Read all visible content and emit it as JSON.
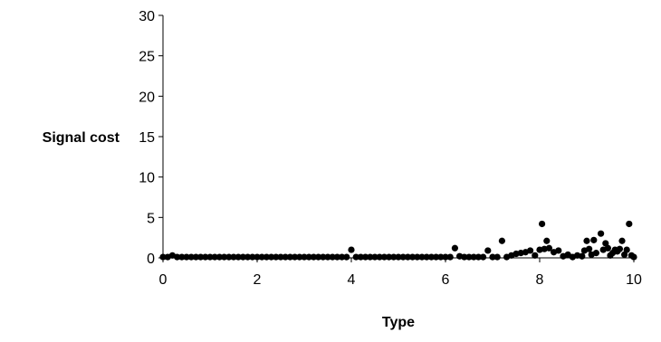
{
  "chart_data": {
    "type": "scatter",
    "title": "",
    "xlabel": "Type",
    "ylabel": "Signal cost",
    "xlim": [
      0,
      10
    ],
    "ylim": [
      0,
      30
    ],
    "x_ticks": [
      "0",
      "2",
      "4",
      "6",
      "8",
      "10"
    ],
    "y_ticks": [
      "0",
      "5",
      "10",
      "15",
      "20",
      "25",
      "30"
    ],
    "grid": false,
    "legend": "none",
    "marker_color": "#000000",
    "points": [
      [
        0.0,
        0.1
      ],
      [
        0.1,
        0.1
      ],
      [
        0.2,
        0.3
      ],
      [
        0.3,
        0.1
      ],
      [
        0.4,
        0.1
      ],
      [
        0.5,
        0.1
      ],
      [
        0.6,
        0.1
      ],
      [
        0.7,
        0.1
      ],
      [
        0.8,
        0.1
      ],
      [
        0.9,
        0.1
      ],
      [
        1.0,
        0.1
      ],
      [
        1.1,
        0.1
      ],
      [
        1.2,
        0.1
      ],
      [
        1.3,
        0.1
      ],
      [
        1.4,
        0.1
      ],
      [
        1.5,
        0.1
      ],
      [
        1.6,
        0.1
      ],
      [
        1.7,
        0.1
      ],
      [
        1.8,
        0.1
      ],
      [
        1.9,
        0.1
      ],
      [
        2.0,
        0.1
      ],
      [
        2.1,
        0.1
      ],
      [
        2.2,
        0.1
      ],
      [
        2.3,
        0.1
      ],
      [
        2.4,
        0.1
      ],
      [
        2.5,
        0.1
      ],
      [
        2.6,
        0.1
      ],
      [
        2.7,
        0.1
      ],
      [
        2.8,
        0.1
      ],
      [
        2.9,
        0.1
      ],
      [
        3.0,
        0.1
      ],
      [
        3.1,
        0.1
      ],
      [
        3.2,
        0.1
      ],
      [
        3.3,
        0.1
      ],
      [
        3.4,
        0.1
      ],
      [
        3.5,
        0.1
      ],
      [
        3.6,
        0.1
      ],
      [
        3.7,
        0.1
      ],
      [
        3.8,
        0.1
      ],
      [
        3.9,
        0.1
      ],
      [
        4.0,
        1.0
      ],
      [
        4.1,
        0.1
      ],
      [
        4.2,
        0.1
      ],
      [
        4.3,
        0.1
      ],
      [
        4.4,
        0.1
      ],
      [
        4.5,
        0.1
      ],
      [
        4.6,
        0.1
      ],
      [
        4.7,
        0.1
      ],
      [
        4.8,
        0.1
      ],
      [
        4.9,
        0.1
      ],
      [
        5.0,
        0.1
      ],
      [
        5.1,
        0.1
      ],
      [
        5.2,
        0.1
      ],
      [
        5.3,
        0.1
      ],
      [
        5.4,
        0.1
      ],
      [
        5.5,
        0.1
      ],
      [
        5.6,
        0.1
      ],
      [
        5.7,
        0.1
      ],
      [
        5.8,
        0.1
      ],
      [
        5.9,
        0.1
      ],
      [
        6.0,
        0.1
      ],
      [
        6.1,
        0.1
      ],
      [
        6.2,
        1.2
      ],
      [
        6.3,
        0.2
      ],
      [
        6.4,
        0.1
      ],
      [
        6.5,
        0.1
      ],
      [
        6.6,
        0.1
      ],
      [
        6.7,
        0.1
      ],
      [
        6.8,
        0.1
      ],
      [
        6.9,
        0.9
      ],
      [
        7.0,
        0.1
      ],
      [
        7.1,
        0.1
      ],
      [
        7.2,
        2.1
      ],
      [
        7.3,
        0.1
      ],
      [
        7.4,
        0.3
      ],
      [
        7.5,
        0.5
      ],
      [
        7.6,
        0.6
      ],
      [
        7.7,
        0.7
      ],
      [
        7.8,
        0.9
      ],
      [
        7.9,
        0.3
      ],
      [
        8.0,
        1.0
      ],
      [
        8.05,
        4.2
      ],
      [
        8.1,
        1.1
      ],
      [
        8.15,
        2.1
      ],
      [
        8.2,
        1.2
      ],
      [
        8.3,
        0.7
      ],
      [
        8.4,
        0.9
      ],
      [
        8.5,
        0.2
      ],
      [
        8.6,
        0.4
      ],
      [
        8.7,
        0.1
      ],
      [
        8.8,
        0.3
      ],
      [
        8.9,
        0.2
      ],
      [
        8.95,
        0.9
      ],
      [
        9.0,
        2.1
      ],
      [
        9.05,
        1.1
      ],
      [
        9.1,
        0.4
      ],
      [
        9.15,
        2.2
      ],
      [
        9.2,
        0.6
      ],
      [
        9.3,
        3.0
      ],
      [
        9.35,
        1.0
      ],
      [
        9.4,
        1.8
      ],
      [
        9.45,
        1.2
      ],
      [
        9.5,
        0.3
      ],
      [
        9.55,
        0.6
      ],
      [
        9.6,
        1.0
      ],
      [
        9.65,
        0.8
      ],
      [
        9.7,
        1.1
      ],
      [
        9.75,
        2.1
      ],
      [
        9.8,
        0.4
      ],
      [
        9.85,
        1.0
      ],
      [
        9.9,
        4.2
      ],
      [
        9.95,
        0.3
      ],
      [
        10.0,
        0.1
      ]
    ]
  }
}
